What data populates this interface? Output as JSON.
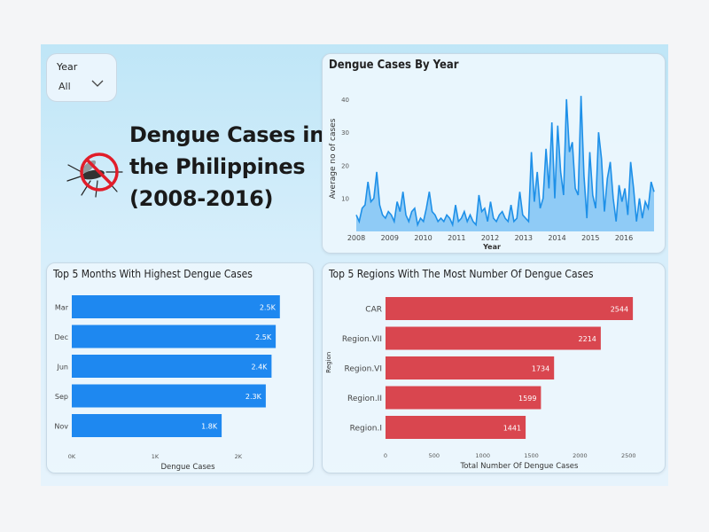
{
  "slicer": {
    "label": "Year",
    "value": "All"
  },
  "title_lines": [
    "Dengue Cases in",
    "the Philippines",
    "(2008-2016)"
  ],
  "icons": {
    "logo": "mosquito-prohibited-icon",
    "dropdown": "chevron-down-icon"
  },
  "colors": {
    "line": "#1e90e8",
    "area": "#7fc3f5",
    "blue_bar": "#1e88f0",
    "red_bar": "#d9464f"
  },
  "chart_data": [
    {
      "type": "area",
      "title": "Dengue Cases By Year",
      "xlabel": "Year",
      "ylabel": "Average no of cases",
      "x_ticks": [
        "2008",
        "2009",
        "2010",
        "2011",
        "2012",
        "2013",
        "2014",
        "2015",
        "2016"
      ],
      "y_ticks": [
        10,
        20,
        30,
        40
      ],
      "ylim": [
        0,
        44
      ],
      "xlim": [
        2008,
        2016.9
      ],
      "values": [
        5,
        3,
        7,
        8,
        15,
        9,
        10,
        18,
        8,
        5,
        4,
        6,
        5,
        3,
        9,
        6,
        12,
        5,
        3,
        6,
        7,
        2,
        4,
        3,
        7,
        12,
        6,
        5,
        3,
        4,
        3,
        5,
        4,
        2,
        8,
        3,
        4,
        6,
        3,
        5,
        3,
        2,
        11,
        6,
        7,
        3,
        9,
        4,
        3,
        5,
        6,
        4,
        3,
        8,
        3,
        4,
        12,
        5,
        4,
        3,
        24,
        9,
        18,
        7,
        10,
        25,
        13,
        33,
        10,
        32,
        18,
        11,
        40,
        24,
        27,
        13,
        11,
        41,
        17,
        4,
        24,
        11,
        7,
        30,
        22,
        6,
        16,
        21,
        10,
        3,
        14,
        9,
        13,
        5,
        21,
        13,
        3,
        10,
        4,
        9,
        7,
        15,
        12
      ]
    },
    {
      "type": "bar",
      "orientation": "horizontal",
      "title": "Top 5 Months With Highest Dengue Cases",
      "xlabel": "Dengue Cases",
      "categories": [
        "Mar",
        "Dec",
        "Jun",
        "Sep",
        "Nov"
      ],
      "values": [
        2500,
        2450,
        2400,
        2330,
        1800
      ],
      "data_labels": [
        "2.5K",
        "2.5K",
        "2.4K",
        "2.3K",
        "1.8K"
      ],
      "x_ticks": [
        "0K",
        "1K",
        "2K"
      ],
      "xlim": [
        0,
        2800
      ]
    },
    {
      "type": "bar",
      "orientation": "horizontal",
      "title": "Top 5 Regions With The Most Number Of Dengue Cases",
      "xlabel": "Total Number Of Dengue Cases",
      "ylabel": "Region",
      "categories": [
        "CAR",
        "Region.VII",
        "Region.VI",
        "Region.II",
        "Region.I"
      ],
      "values": [
        2544,
        2214,
        1734,
        1599,
        1441
      ],
      "data_labels": [
        "2544",
        "2214",
        "1734",
        "1599",
        "1441"
      ],
      "x_ticks": [
        "0",
        "500",
        "1000",
        "1500",
        "2000",
        "2500"
      ],
      "x_tick_values": [
        0,
        500,
        1000,
        1500,
        2000,
        2500
      ],
      "xlim": [
        0,
        2680
      ]
    }
  ]
}
